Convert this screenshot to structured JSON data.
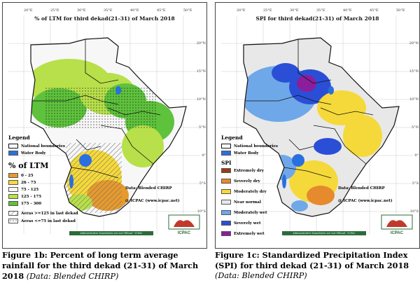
{
  "longitudes": [
    "20°E",
    "25°E",
    "30°E",
    "35°E",
    "40°E",
    "45°E",
    "50°E"
  ],
  "latitudes": [
    "20°N",
    "15°N",
    "10°N",
    "5°N",
    "0°",
    "5°S",
    "10°S"
  ],
  "left_map": {
    "title": "%  of  LTM  for  third dekad(21-31)  of March  2018",
    "legend_title": "Legend",
    "boundaries_label": "National boundaries",
    "water_label": "Water Body",
    "scale_title": "% of LTM",
    "classes": [
      {
        "label": "0 - 25",
        "color": "#e69a2e"
      },
      {
        "label": "26 - 75",
        "color": "#f5d93a"
      },
      {
        "label": "75 - 125",
        "color": "#f7f7f7"
      },
      {
        "label": "125 - 175",
        "color": "#b8e04a"
      },
      {
        "label": "175 - 300",
        "color": "#5ec23c"
      }
    ],
    "hatch_label": "Aeras >=125 in last dekad",
    "dots_label": "Aeras <=75 in last dekad",
    "data_credit": "Data: Blended CHIRP",
    "icpac_credit": "@ ICPAC (www.icpac.net)",
    "footer": "Administrative boundaries are not Official  - ICPAC",
    "caption_bold": "Figure 1b: Percent of long term average rainfall for the third dekad (21-31) of March 2018",
    "caption_italic": "(Data: Blended CHIRP)"
  },
  "right_map": {
    "title": "SPI  for  third dekad(21-31)  of March  2018",
    "legend_title": "Legend",
    "boundaries_label": "National boundaries",
    "water_label": "Water Body",
    "scale_title": "SPI",
    "classes": [
      {
        "label": "Extremely dry",
        "color": "#9b3b14"
      },
      {
        "label": "Severely dry",
        "color": "#e68a2e"
      },
      {
        "label": "Moderately dry",
        "color": "#f5d93a"
      },
      {
        "label": "Near normal",
        "color": "#e8e8e8"
      },
      {
        "label": "Moderately wet",
        "color": "#6fa8e8"
      },
      {
        "label": "Severely wet",
        "color": "#2a4fd6"
      },
      {
        "label": "Extremely wet",
        "color": "#8b1e9b"
      }
    ],
    "data_credit": "Data: Blended CHIRP",
    "icpac_credit": "@ ICPAC (www.icpac.net)",
    "footer": "Administrative boundaries are not Official  - ICPAC",
    "caption_bold": "Figure 1c: Standardized Precipitation Index (SPI) for third dekad (21-31)  of March 2018",
    "caption_italic": "(Data: Blended CHIRP)"
  },
  "logo_text": "ICPAC",
  "colors": {
    "water": "#2a6fe0",
    "border": "#111111"
  }
}
